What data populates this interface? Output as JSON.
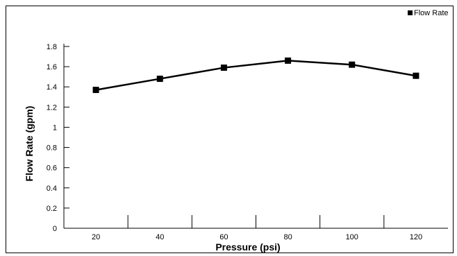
{
  "chart_data": {
    "type": "line",
    "categories": [
      "20",
      "40",
      "60",
      "80",
      "100",
      "120"
    ],
    "series": [
      {
        "name": "Flow Rate",
        "values": [
          1.37,
          1.48,
          1.59,
          1.66,
          1.62,
          1.51
        ]
      }
    ],
    "y_ticks": [
      "0",
      "0.2",
      "0.4",
      "0.6",
      "0.8",
      "1",
      "1.2",
      "1.4",
      "1.6",
      "1.8"
    ],
    "xlabel": "Pressure (psi)",
    "ylabel": "Flow Rate (gpm)",
    "ylim": [
      0,
      1.8
    ],
    "grid": false,
    "legend_position": "top-right",
    "colors": {
      "series": "#000000",
      "axis": "#000000",
      "background": "#ffffff"
    }
  }
}
